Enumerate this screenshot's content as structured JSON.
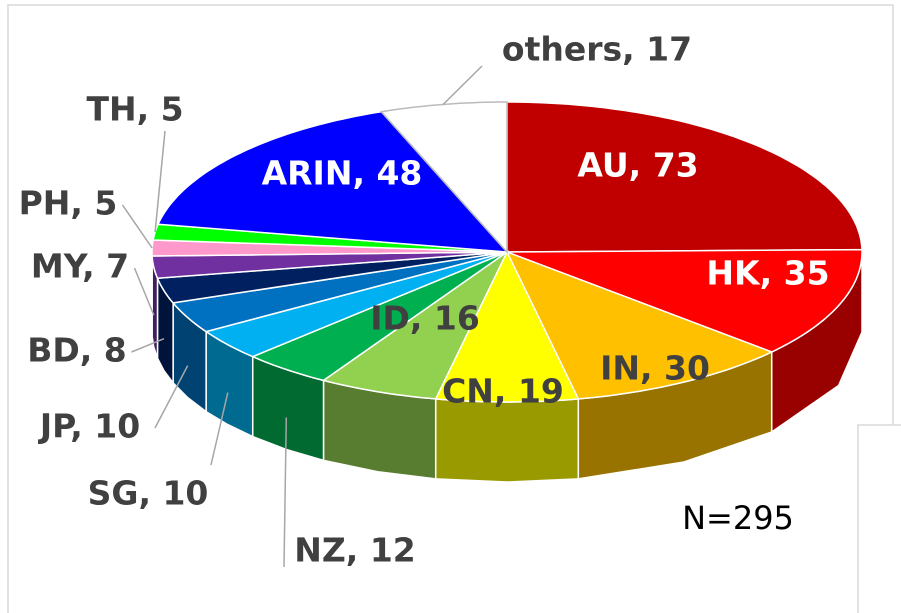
{
  "chart_data": {
    "type": "pie3d",
    "categories": [
      "AU",
      "HK",
      "IN",
      "CN",
      "ID",
      "NZ",
      "SG",
      "JP",
      "BD",
      "MY",
      "PH",
      "TH",
      "ARIN",
      "others"
    ],
    "values": [
      73,
      35,
      30,
      19,
      16,
      12,
      10,
      10,
      8,
      7,
      5,
      5,
      48,
      17
    ],
    "value_labels": [
      "AU, 73",
      "HK, 35",
      "IN, 30",
      "CN, 19",
      "ID, 16",
      "NZ, 12",
      "SG, 10",
      "JP, 10",
      "BD, 8",
      "MY, 7",
      "PH, 5",
      "TH, 5",
      "ARIN, 48",
      "others, 17"
    ],
    "colors": [
      "#c00000",
      "#ff0000",
      "#ffc000",
      "#ffff00",
      "#92d050",
      "#00b050",
      "#00b0f0",
      "#0070c0",
      "#002060",
      "#7030a0",
      "#ff99cc",
      "#00ff00",
      "#0000ff",
      "#ffffff"
    ],
    "annotation": "N=295"
  }
}
